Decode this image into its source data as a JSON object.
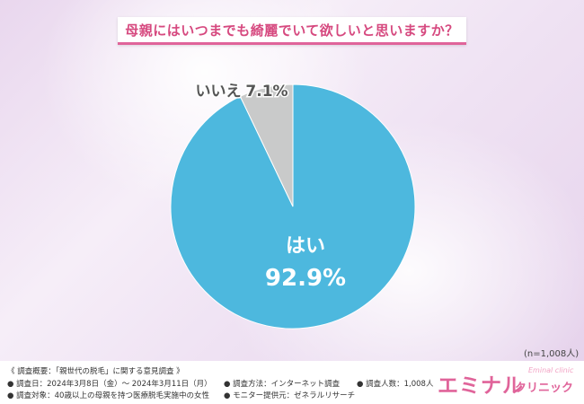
{
  "title": "母親にはいつまでも綺麗でいて欲しいと思いますか？",
  "sample_note": "(n=1,008人)",
  "chart_data": {
    "type": "pie",
    "slices": [
      {
        "label": "はい",
        "value": 92.9,
        "value_label": "92.9%",
        "color": "#4db8de"
      },
      {
        "label": "いいえ",
        "value": 7.1,
        "value_label": "7.1%",
        "color": "#c9caca"
      }
    ]
  },
  "footer": {
    "heading": "《 調査概要：「親世代の脱毛」に関する意見調査 》",
    "date": "調査日：2024年3月8日（金）〜 2024年3月11日（月）",
    "target": "調査対象：40歳以上の母親を持つ医療脱毛実施中の女性",
    "method": "調査方法：インターネット調査",
    "provider": "モニター提供元：ゼネラルリサーチ",
    "count": "調査人数：1,008人"
  },
  "logo": {
    "main": "エミナル",
    "sub": "クリニック",
    "en": "Eminal clinic"
  }
}
